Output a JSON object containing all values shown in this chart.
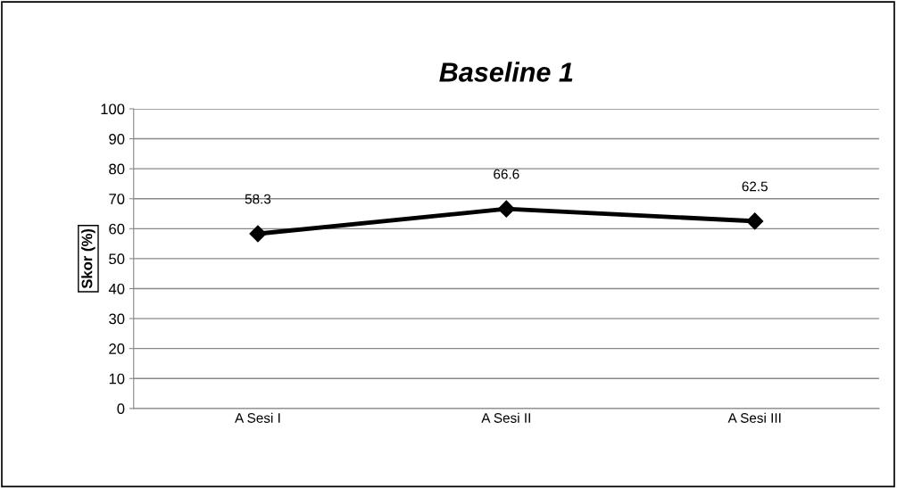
{
  "chart_data": {
    "type": "line",
    "title": "Baseline 1",
    "ylabel": "Skor (%)",
    "categories": [
      "A Sesi I",
      "A Sesi II",
      "A Sesi III"
    ],
    "series": [
      {
        "color": "#000000",
        "values": [
          58.3,
          66.6,
          62.5
        ]
      }
    ],
    "ylim": [
      0,
      100
    ],
    "yticks": [
      0,
      10,
      20,
      30,
      40,
      50,
      60,
      70,
      80,
      90,
      100
    ],
    "grid": "y",
    "marker": "diamond",
    "line_style": "solid",
    "data_labels": true
  }
}
